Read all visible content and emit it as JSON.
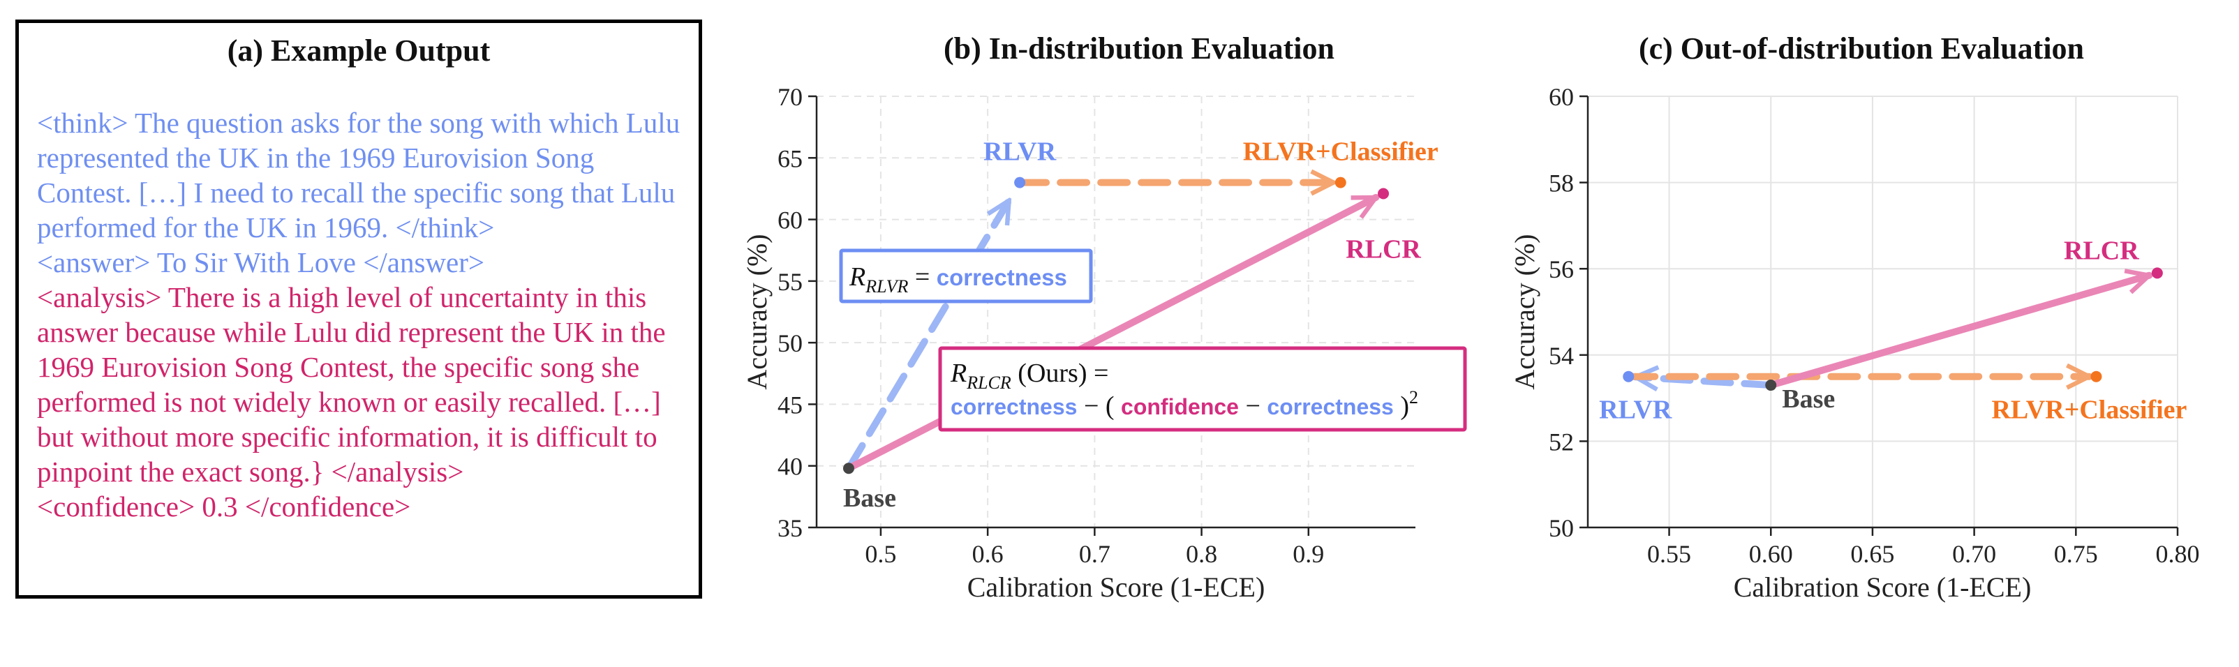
{
  "colors": {
    "rlvr": "#6d8ef3",
    "rlvr_light": "#9db6f6",
    "classifier": "#f4741e",
    "classifier_light": "#f5a570",
    "rlcr": "#d42d7f",
    "rlcr_light": "#ea86b6",
    "base": "#444444",
    "text_blue": "#6f8ff0",
    "text_pink": "#d0246a"
  },
  "panel_a": {
    "title": "(a) Example Output",
    "think": "<think> The question asks for the song with which Lulu represented the UK in the 1969 Eurovision Song Contest. […] I need to recall the specific song that Lulu performed for the UK in 1969. </think>",
    "answer": "<answer> To Sir With Love </answer>",
    "analysis": "<analysis> There is a high level of uncertainty in this answer because while Lulu did represent the UK in the 1969 Eurovision Song Contest, the specific song she performed is not widely known or easily recalled. […] but without more specific information, it is difficult to pinpoint the exact song.} </analysis>",
    "confidence": "<confidence> 0.3 </confidence>"
  },
  "chart_data": [
    {
      "type": "scatter",
      "title": "(b) In-distribution Evaluation",
      "xlabel": "Calibration Score (1-ECE)",
      "ylabel": "Accuracy (%)",
      "xlim": [
        0.44,
        1.0
      ],
      "ylim": [
        35,
        70
      ],
      "xticks": [
        "0.5",
        "0.6",
        "0.7",
        "0.8",
        "0.9"
      ],
      "yticks": [
        "35",
        "40",
        "45",
        "50",
        "55",
        "60",
        "65",
        "70"
      ],
      "grid": true,
      "points": [
        {
          "label": "Base",
          "x": 0.47,
          "y": 39.8
        },
        {
          "label": "RLVR",
          "x": 0.63,
          "y": 63.0
        },
        {
          "label": "RLVR+Classifier",
          "x": 0.93,
          "y": 63.0
        },
        {
          "label": "RLCR",
          "x": 0.97,
          "y": 62.1
        }
      ],
      "annotations": {
        "rlvr_box": {
          "r": "R",
          "sub": "RLVR",
          "eq": " = ",
          "term": "correctness"
        },
        "rlcr_box": {
          "r": "R",
          "sub": "RLCR",
          "ours": " (Ours) =",
          "correctness": "correctness",
          "minus1": " − ( ",
          "confidence": "confidence",
          "minus2": " − ",
          "correctness2": "correctness",
          "close": " )",
          "exp": "2"
        }
      }
    },
    {
      "type": "scatter",
      "title": "(c) Out-of-distribution Evaluation",
      "xlabel": "Calibration Score (1-ECE)",
      "ylabel": "Accuracy (%)",
      "xlim": [
        0.51,
        0.8
      ],
      "ylim": [
        50,
        60
      ],
      "xticks": [
        "0.55",
        "0.60",
        "0.65",
        "0.70",
        "0.75",
        "0.80"
      ],
      "yticks": [
        "50",
        "52",
        "54",
        "56",
        "58",
        "60"
      ],
      "grid": true,
      "points": [
        {
          "label": "Base",
          "x": 0.6,
          "y": 53.3
        },
        {
          "label": "RLVR",
          "x": 0.53,
          "y": 53.5
        },
        {
          "label": "RLVR+Classifier",
          "x": 0.76,
          "y": 53.5
        },
        {
          "label": "RLCR",
          "x": 0.79,
          "y": 55.9
        }
      ]
    }
  ]
}
